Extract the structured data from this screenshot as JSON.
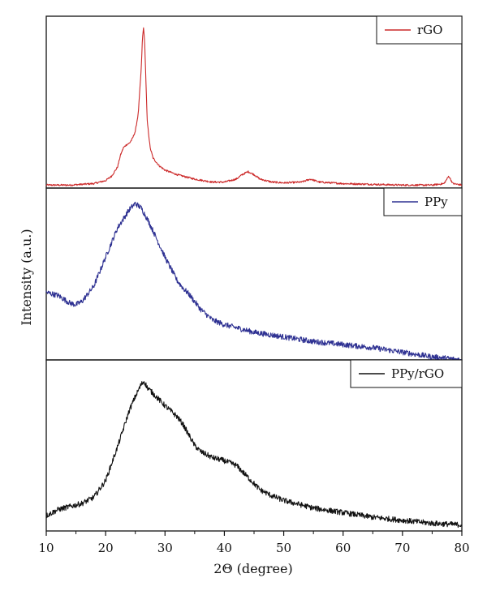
{
  "chart_data": {
    "type": "line",
    "title": "",
    "xlabel": "2Θ (degree)",
    "ylabel": "Intensity (a.u.)",
    "xlim": [
      10,
      80
    ],
    "x_ticks": [
      10,
      20,
      30,
      40,
      50,
      60,
      70,
      80
    ],
    "grid": false,
    "legend_position": "top-right",
    "layout": "stacked-panels",
    "series": [
      {
        "name": "rGO",
        "color": "#cc2a2a",
        "ylim": [
          0,
          1.15
        ],
        "x": [
          10,
          14,
          18,
          20,
          21,
          22,
          22.5,
          23,
          23.5,
          24,
          24.5,
          25,
          25.5,
          26,
          26.2,
          26.4,
          26.6,
          26.8,
          27,
          27.5,
          28,
          29,
          30,
          32,
          35,
          38,
          40,
          42,
          43,
          44,
          45,
          46,
          48,
          50,
          53,
          54.5,
          56,
          60,
          65,
          70,
          75,
          77,
          77.8,
          78.5,
          80
        ],
        "values": [
          0.02,
          0.02,
          0.03,
          0.05,
          0.08,
          0.14,
          0.22,
          0.27,
          0.29,
          0.3,
          0.33,
          0.38,
          0.5,
          0.8,
          1.0,
          1.08,
          0.95,
          0.7,
          0.45,
          0.27,
          0.2,
          0.15,
          0.12,
          0.09,
          0.06,
          0.04,
          0.04,
          0.06,
          0.09,
          0.11,
          0.09,
          0.06,
          0.04,
          0.035,
          0.04,
          0.06,
          0.04,
          0.03,
          0.025,
          0.02,
          0.02,
          0.03,
          0.08,
          0.03,
          0.02
        ]
      },
      {
        "name": "PPy",
        "color": "#2e3192",
        "ylim": [
          0,
          1.12
        ],
        "x": [
          10,
          12,
          14,
          15,
          16,
          18,
          20,
          22,
          24,
          25,
          26,
          27,
          28,
          30,
          32,
          33,
          34,
          36,
          38,
          40,
          45,
          50,
          55,
          60,
          65,
          70,
          75,
          80
        ],
        "values": [
          0.44,
          0.42,
          0.37,
          0.36,
          0.38,
          0.48,
          0.67,
          0.86,
          0.98,
          1.02,
          0.99,
          0.92,
          0.84,
          0.67,
          0.52,
          0.47,
          0.43,
          0.33,
          0.26,
          0.23,
          0.18,
          0.15,
          0.12,
          0.1,
          0.08,
          0.05,
          0.02,
          0.0
        ]
      },
      {
        "name": "PPy/rGO",
        "color": "#111111",
        "ylim": [
          0,
          1.12
        ],
        "x": [
          10,
          12,
          14,
          16,
          18,
          20,
          22,
          24,
          25,
          26,
          26.5,
          27,
          28,
          30,
          32,
          33,
          35,
          36,
          38,
          40,
          42,
          44,
          46,
          48,
          50,
          55,
          60,
          65,
          70,
          75,
          80
        ],
        "values": [
          0.1,
          0.14,
          0.16,
          0.18,
          0.22,
          0.33,
          0.55,
          0.79,
          0.88,
          0.96,
          0.98,
          0.94,
          0.9,
          0.82,
          0.75,
          0.7,
          0.56,
          0.52,
          0.48,
          0.46,
          0.43,
          0.35,
          0.27,
          0.23,
          0.2,
          0.15,
          0.12,
          0.09,
          0.07,
          0.05,
          0.04
        ]
      }
    ]
  }
}
